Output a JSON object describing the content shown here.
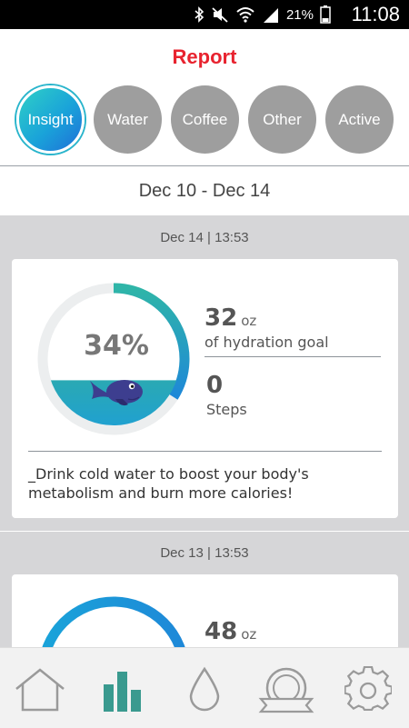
{
  "status_bar": {
    "battery_percent": "21%",
    "time": "11:08",
    "icons": [
      "bluetooth-icon",
      "mute-icon",
      "wifi-icon",
      "signal-icon",
      "battery-icon"
    ]
  },
  "header": {
    "title": "Report",
    "tabs": [
      {
        "label": "Insight",
        "active": true
      },
      {
        "label": "Water",
        "active": false
      },
      {
        "label": "Coffee",
        "active": false
      },
      {
        "label": "Other",
        "active": false
      },
      {
        "label": "Active",
        "active": false
      }
    ]
  },
  "date_range": "Dec 10 - Dec 14",
  "entries": [
    {
      "date": "Dec 14 | 13:53",
      "percent_text": "34%",
      "goal_fraction": 0.34,
      "oz_value": "32",
      "oz_unit": "oz",
      "oz_label": "of hydration goal",
      "steps_value": "0",
      "steps_label": "Steps",
      "tip": "_Drink cold water to boost your body's metabolism and burn more calories!"
    },
    {
      "date": "Dec 13 | 13:53",
      "oz_value": "48",
      "oz_unit": "oz"
    }
  ],
  "nav": [
    {
      "icon": "home-icon",
      "active": false
    },
    {
      "icon": "bar-chart-icon",
      "active": true
    },
    {
      "icon": "water-drop-icon",
      "active": false
    },
    {
      "icon": "badge-icon",
      "active": false
    },
    {
      "icon": "gear-icon",
      "active": false
    }
  ],
  "colors": {
    "accent_red": "#e8232f",
    "teal": "#2fb5a8",
    "blue": "#1e88d8",
    "nav_active": "#3a9a8f",
    "nav_inactive": "#9a9a9a"
  }
}
